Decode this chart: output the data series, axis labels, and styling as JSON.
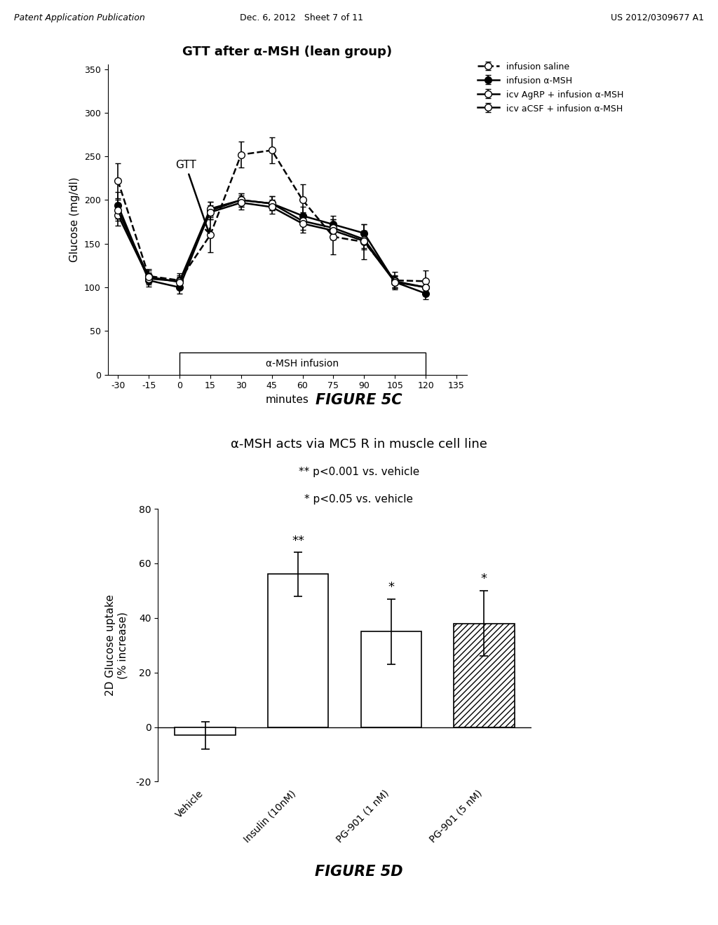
{
  "fig5c": {
    "title": "GTT after α-MSH (lean group)",
    "xlabel": "minutes",
    "ylabel": "Glucose (mg/dl)",
    "x_ticks": [
      -30,
      -15,
      0,
      15,
      30,
      45,
      60,
      75,
      90,
      105,
      120,
      135
    ],
    "ylim": [
      0,
      355
    ],
    "yticks": [
      0,
      50,
      100,
      150,
      200,
      250,
      300,
      350
    ],
    "infusion_label": "α-MSH infusion",
    "series": {
      "saline": {
        "label": "infusion saline",
        "x": [
          -30,
          -15,
          0,
          15,
          30,
          45,
          60,
          75,
          90,
          105,
          120
        ],
        "y": [
          222,
          113,
          108,
          160,
          252,
          257,
          200,
          158,
          152,
          108,
          107
        ],
        "yerr": [
          20,
          8,
          8,
          20,
          15,
          15,
          18,
          20,
          20,
          10,
          12
        ],
        "linestyle": "--",
        "marker_filled": false
      },
      "alpha_msh": {
        "label": "infusion α-MSH",
        "x": [
          -30,
          -15,
          0,
          15,
          30,
          45,
          60,
          75,
          90,
          105,
          120
        ],
        "y": [
          194,
          108,
          100,
          188,
          200,
          196,
          182,
          172,
          162,
          106,
          93
        ],
        "yerr": [
          15,
          7,
          7,
          10,
          8,
          8,
          10,
          10,
          10,
          7,
          7
        ],
        "linestyle": "-",
        "marker_filled": true
      },
      "agrp": {
        "label": "icv AgRP + infusion α-MSH",
        "x": [
          -30,
          -15,
          0,
          15,
          30,
          45,
          60,
          75,
          90,
          105,
          120
        ],
        "y": [
          183,
          110,
          107,
          190,
          200,
          196,
          176,
          168,
          155,
          107,
          100
        ],
        "yerr": [
          12,
          7,
          7,
          8,
          8,
          8,
          10,
          10,
          10,
          7,
          7
        ],
        "linestyle": "-",
        "marker_filled": false
      },
      "acsf": {
        "label": "icv aCSF + infusion α-MSH",
        "x": [
          -30,
          -15,
          0,
          15,
          30,
          45,
          60,
          75,
          90,
          105,
          120
        ],
        "y": [
          188,
          112,
          106,
          186,
          197,
          192,
          173,
          165,
          153,
          106,
          100
        ],
        "yerr": [
          12,
          7,
          6,
          8,
          8,
          8,
          10,
          10,
          10,
          7,
          7
        ],
        "linestyle": "-",
        "marker_filled": false
      }
    }
  },
  "fig5d": {
    "title": "α-MSH acts via MC5 R in muscle cell line",
    "ylabel": "2D Glucose uptake\n(% increase)",
    "stat_label1": "** p<0.001 vs. vehicle",
    "stat_label2": "* p<0.05 vs. vehicle",
    "categories": [
      "Vehicle",
      "Insulin (10nM)",
      "PG-901 (1 nM)",
      "PG-901 (5 nM)"
    ],
    "values": [
      -3,
      56,
      35,
      38
    ],
    "errors": [
      5,
      8,
      12,
      12
    ],
    "ylim": [
      -20,
      80
    ],
    "yticks": [
      -20,
      0,
      20,
      40,
      60,
      80
    ],
    "significance": [
      "",
      "**",
      "*",
      "*"
    ]
  },
  "header": {
    "left": "Patent Application Publication",
    "center": "Dec. 6, 2012   Sheet 7 of 11",
    "right": "US 2012/0309677 A1"
  },
  "figure5c_label": "FIGURE 5C",
  "figure5d_label": "FIGURE 5D"
}
